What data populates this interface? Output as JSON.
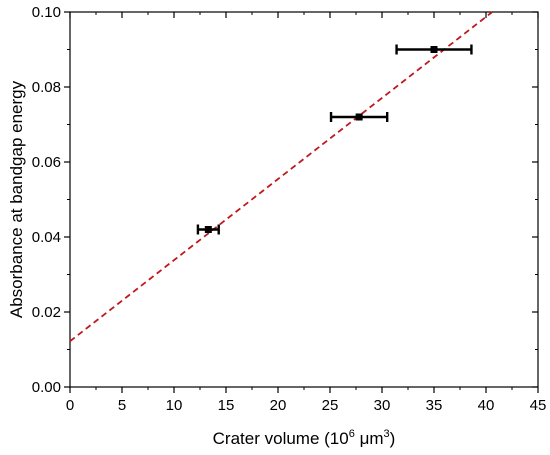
{
  "chart_data": {
    "type": "scatter",
    "title": "",
    "xlabel": {
      "prefix": "Crater volume (10",
      "sup1": "6",
      "mid": " μm",
      "sup2": "3",
      "suffix": ")"
    },
    "ylabel": "Absorbance at bandgap energy",
    "xlim": [
      0,
      45
    ],
    "ylim": [
      0,
      0.1
    ],
    "xticks": [
      0,
      5,
      10,
      15,
      20,
      25,
      30,
      35,
      40,
      45
    ],
    "xtick_labels": [
      "0",
      "5",
      "10",
      "15",
      "20",
      "25",
      "30",
      "35",
      "40",
      "45"
    ],
    "yticks": [
      0,
      0.02,
      0.04,
      0.06,
      0.08,
      0.1
    ],
    "ytick_labels": [
      "0.00",
      "0.02",
      "0.04",
      "0.06",
      "0.08",
      "0.10"
    ],
    "grid": false,
    "legend": "none",
    "points": [
      {
        "x": 13.3,
        "y": 0.042,
        "xerr": 1.0
      },
      {
        "x": 27.8,
        "y": 0.072,
        "xerr": 2.7
      },
      {
        "x": 35.0,
        "y": 0.09,
        "xerr": 3.6
      }
    ],
    "fit_line": {
      "x": [
        0,
        40.6
      ],
      "y": [
        0.0122,
        0.1
      ],
      "color": "#c0181e",
      "style": "dashed"
    },
    "colors": {
      "points": "#000000",
      "fit": "#c0181e"
    }
  }
}
